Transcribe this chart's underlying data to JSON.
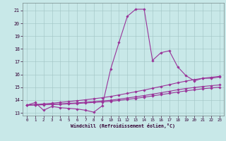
{
  "xlabel": "Windchill (Refroidissement éolien,°C)",
  "background_color": "#c8e8e8",
  "grid_color": "#a0c4c4",
  "line_color": "#993399",
  "xlim": [
    -0.5,
    23.5
  ],
  "ylim": [
    12.78,
    21.6
  ],
  "yticks": [
    13,
    14,
    15,
    16,
    17,
    18,
    19,
    20,
    21
  ],
  "xticks": [
    0,
    1,
    2,
    3,
    4,
    5,
    6,
    7,
    8,
    9,
    10,
    11,
    12,
    13,
    14,
    15,
    16,
    17,
    18,
    19,
    20,
    21,
    22,
    23
  ],
  "s1_x": [
    0,
    1,
    2,
    3,
    4,
    5,
    6,
    7,
    8,
    9,
    10,
    11,
    12,
    13,
    14,
    15,
    16,
    17,
    18,
    19,
    20,
    21,
    22,
    23
  ],
  "s1_y": [
    13.6,
    13.8,
    13.2,
    13.5,
    13.4,
    13.35,
    13.3,
    13.2,
    13.05,
    13.55,
    16.4,
    18.5,
    20.55,
    21.1,
    21.1,
    17.1,
    17.7,
    17.85,
    16.6,
    15.9,
    15.5,
    15.7,
    15.7,
    15.8
  ],
  "s2_x": [
    0,
    1,
    2,
    3,
    4,
    5,
    6,
    7,
    8,
    9,
    10,
    11,
    12,
    13,
    14,
    15,
    16,
    17,
    18,
    19,
    20,
    21,
    22,
    23
  ],
  "s2_y": [
    13.6,
    13.65,
    13.7,
    13.75,
    13.82,
    13.88,
    13.95,
    14.02,
    14.1,
    14.18,
    14.28,
    14.4,
    14.52,
    14.65,
    14.78,
    14.92,
    15.06,
    15.2,
    15.35,
    15.48,
    15.6,
    15.7,
    15.78,
    15.85
  ],
  "s3_x": [
    0,
    1,
    2,
    3,
    4,
    5,
    6,
    7,
    8,
    9,
    10,
    11,
    12,
    13,
    14,
    15,
    16,
    17,
    18,
    19,
    20,
    21,
    22,
    23
  ],
  "s3_y": [
    13.6,
    13.62,
    13.64,
    13.67,
    13.7,
    13.74,
    13.78,
    13.83,
    13.88,
    13.93,
    13.98,
    14.07,
    14.16,
    14.25,
    14.35,
    14.46,
    14.57,
    14.68,
    14.8,
    14.9,
    14.98,
    15.06,
    15.12,
    15.18
  ],
  "s4_x": [
    0,
    1,
    2,
    3,
    4,
    5,
    6,
    7,
    8,
    9,
    10,
    11,
    12,
    13,
    14,
    15,
    16,
    17,
    18,
    19,
    20,
    21,
    22,
    23
  ],
  "s4_y": [
    13.6,
    13.61,
    13.63,
    13.65,
    13.67,
    13.7,
    13.73,
    13.77,
    13.81,
    13.85,
    13.9,
    13.97,
    14.05,
    14.13,
    14.22,
    14.32,
    14.42,
    14.52,
    14.62,
    14.72,
    14.8,
    14.88,
    14.94,
    15.0
  ]
}
